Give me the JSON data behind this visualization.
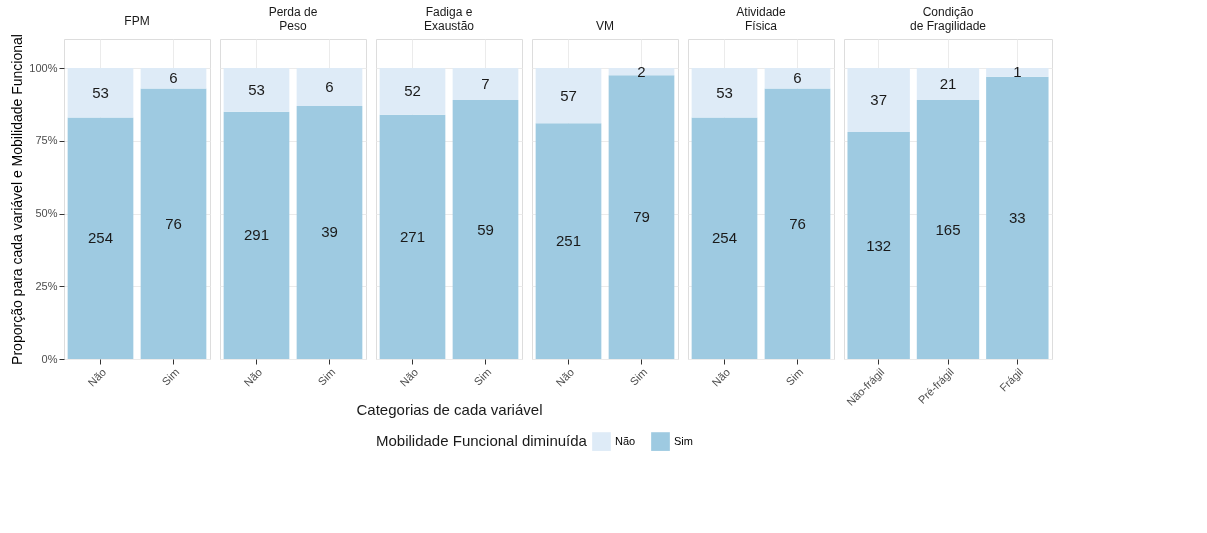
{
  "chart_data": [
    {
      "type": "bar",
      "stacked": true,
      "title": "FPM",
      "ylabel": "Proporção para cada variável e Mobilidade Funcional",
      "grid": true,
      "categories": [
        "Não",
        "Sim"
      ],
      "ylim": [
        0,
        110
      ],
      "yticks": [
        {
          "value": 0,
          "label": "0%"
        },
        {
          "value": 25,
          "label": "25%"
        },
        {
          "value": 50,
          "label": "50%"
        },
        {
          "value": 75,
          "label": "75%"
        },
        {
          "value": 100,
          "label": "100%"
        }
      ],
      "series": [
        {
          "color": "#9ecae1",
          "values": [
            83,
            93
          ]
        },
        {
          "color": "#deebf7",
          "values": [
            17,
            7
          ]
        }
      ],
      "annotations": [
        "254",
        "76",
        "53",
        "6"
      ]
    },
    {
      "type": "bar",
      "stacked": true,
      "title": "Perda de\nPeso",
      "grid": true,
      "tick_labels": "x",
      "categories": [
        "Não",
        "Sim"
      ],
      "ylim": [
        0,
        110
      ],
      "yticks": [
        0,
        25,
        50,
        75,
        100
      ],
      "series": [
        {
          "color": "#9ecae1",
          "values": [
            85,
            87
          ]
        },
        {
          "color": "#deebf7",
          "values": [
            15,
            13
          ]
        }
      ],
      "annotations": [
        "291",
        "39",
        "53",
        "6"
      ]
    },
    {
      "type": "bar",
      "stacked": true,
      "title": "Fadiga e\nExaustão",
      "xlabel": "Categorias de cada variável",
      "legend_title": "Mobilidade Funcional diminuída",
      "legend": "bottom",
      "grid": true,
      "tick_labels": "x",
      "categories": [
        "Não",
        "Sim"
      ],
      "ylim": [
        0,
        110
      ],
      "yticks": [
        0,
        25,
        50,
        75,
        100
      ],
      "series": [
        {
          "name": "Sim",
          "color": "#9ecae1",
          "values": [
            84,
            89
          ]
        },
        {
          "name": "Não",
          "color": "#deebf7",
          "values": [
            16,
            11
          ]
        }
      ],
      "annotations": [
        "271",
        "59",
        "52",
        "7"
      ]
    },
    {
      "type": "bar",
      "stacked": true,
      "title": "VM",
      "grid": true,
      "tick_labels": "x",
      "categories": [
        "Não",
        "Sim"
      ],
      "ylim": [
        0,
        110
      ],
      "yticks": [
        0,
        25,
        50,
        75,
        100
      ],
      "series": [
        {
          "color": "#9ecae1",
          "values": [
            81,
            97.5
          ]
        },
        {
          "color": "#deebf7",
          "values": [
            19,
            2.5
          ]
        }
      ],
      "annotations": [
        "251",
        "79",
        "57",
        "2"
      ]
    },
    {
      "type": "bar",
      "stacked": true,
      "title": "Atividade\nFísica",
      "grid": true,
      "tick_labels": "x",
      "categories": [
        "Não",
        "Sim"
      ],
      "ylim": [
        0,
        110
      ],
      "yticks": [
        0,
        25,
        50,
        75,
        100
      ],
      "series": [
        {
          "color": "#9ecae1",
          "values": [
            83,
            93
          ]
        },
        {
          "color": "#deebf7",
          "values": [
            17,
            7
          ]
        }
      ],
      "annotations": [
        "254",
        "76",
        "53",
        "6"
      ]
    },
    {
      "type": "bar",
      "stacked": true,
      "title": "Condição\nde Fragilidade",
      "grid": true,
      "tick_labels": "x",
      "categories": [
        "Não-frágil",
        "Pré-frágil",
        "Frágil"
      ],
      "ylim": [
        0,
        110
      ],
      "yticks": [
        0,
        25,
        50,
        75,
        100
      ],
      "series": [
        {
          "color": "#9ecae1",
          "values": [
            78,
            89,
            97
          ]
        },
        {
          "color": "#deebf7",
          "values": [
            22,
            11,
            3
          ]
        }
      ],
      "annotations": [
        "132",
        "165",
        "33",
        "37",
        "21",
        "1"
      ]
    }
  ]
}
